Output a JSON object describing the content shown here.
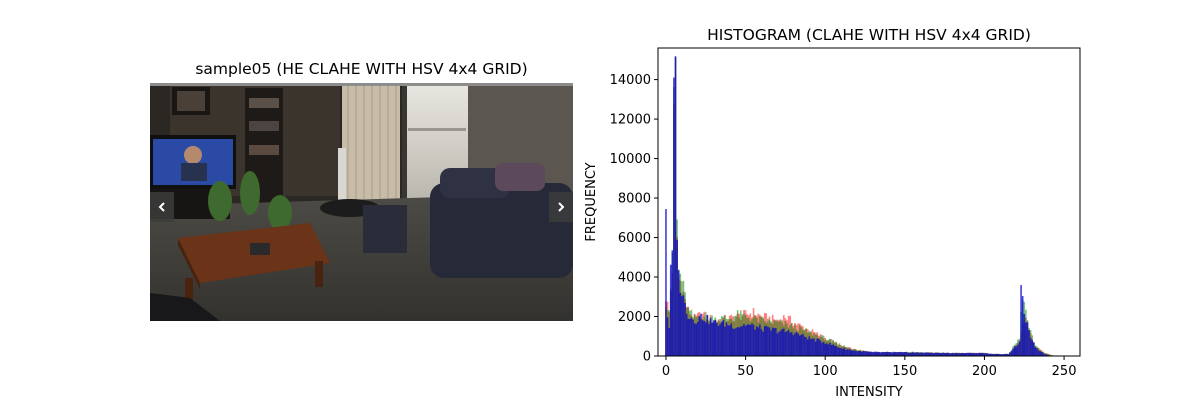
{
  "viewer": {
    "title": "sample05 (HE CLAHE WITH HSV 4x4 GRID)",
    "prev_icon": "chevron-left-icon",
    "next_icon": "chevron-right-icon"
  },
  "chart_data": {
    "type": "bar",
    "title": "HISTOGRAM (CLAHE WITH HSV 4x4 GRID)",
    "xlabel": "INTENSITY",
    "ylabel": "FREQUENCY",
    "xlim": [
      -5,
      260
    ],
    "ylim": [
      0,
      15600
    ],
    "xticks": [
      0,
      50,
      100,
      150,
      200,
      250
    ],
    "yticks": [
      0,
      2000,
      4000,
      6000,
      8000,
      10000,
      12000,
      14000
    ],
    "grid": false,
    "series": [
      {
        "color": "#ff0000",
        "alpha": 0.5,
        "anchors": [
          [
            0,
            3000
          ],
          [
            2,
            2200
          ],
          [
            4,
            4400
          ],
          [
            5,
            11800
          ],
          [
            6,
            14200
          ],
          [
            7,
            6000
          ],
          [
            8,
            4000
          ],
          [
            10,
            3600
          ],
          [
            12,
            2800
          ],
          [
            14,
            2300
          ],
          [
            18,
            1900
          ],
          [
            22,
            2100
          ],
          [
            30,
            1800
          ],
          [
            40,
            1900
          ],
          [
            45,
            2000
          ],
          [
            50,
            2100
          ],
          [
            55,
            2200
          ],
          [
            60,
            2000
          ],
          [
            70,
            1800
          ],
          [
            75,
            2000
          ],
          [
            80,
            1700
          ],
          [
            90,
            1300
          ],
          [
            100,
            900
          ],
          [
            110,
            500
          ],
          [
            120,
            300
          ],
          [
            130,
            200
          ],
          [
            150,
            200
          ],
          [
            180,
            150
          ],
          [
            200,
            150
          ],
          [
            205,
            100
          ],
          [
            215,
            100
          ],
          [
            222,
            700
          ],
          [
            224,
            1500
          ],
          [
            226,
            2000
          ],
          [
            228,
            1300
          ],
          [
            232,
            500
          ],
          [
            238,
            150
          ],
          [
            242,
            50
          ],
          [
            245,
            0
          ],
          [
            255,
            0
          ]
        ]
      },
      {
        "color": "#008000",
        "alpha": 0.5,
        "anchors": [
          [
            0,
            2800
          ],
          [
            2,
            2400
          ],
          [
            4,
            4700
          ],
          [
            5,
            13500
          ],
          [
            6,
            14900
          ],
          [
            7,
            6800
          ],
          [
            8,
            4300
          ],
          [
            10,
            3900
          ],
          [
            12,
            3000
          ],
          [
            14,
            2300
          ],
          [
            18,
            1900
          ],
          [
            22,
            2100
          ],
          [
            30,
            1900
          ],
          [
            40,
            1900
          ],
          [
            45,
            2100
          ],
          [
            50,
            2000
          ],
          [
            55,
            1900
          ],
          [
            60,
            1800
          ],
          [
            70,
            1700
          ],
          [
            75,
            1600
          ],
          [
            80,
            1500
          ],
          [
            90,
            1200
          ],
          [
            100,
            900
          ],
          [
            110,
            550
          ],
          [
            120,
            300
          ],
          [
            130,
            200
          ],
          [
            150,
            200
          ],
          [
            180,
            150
          ],
          [
            200,
            150
          ],
          [
            205,
            100
          ],
          [
            215,
            100
          ],
          [
            222,
            900
          ],
          [
            224,
            3200
          ],
          [
            226,
            2200
          ],
          [
            228,
            1400
          ],
          [
            232,
            500
          ],
          [
            238,
            150
          ],
          [
            242,
            50
          ],
          [
            245,
            0
          ],
          [
            255,
            0
          ]
        ]
      },
      {
        "color": "#0000cd",
        "alpha": 0.75,
        "anchors": [
          [
            0,
            7900
          ],
          [
            1,
            2000
          ],
          [
            2,
            1500
          ],
          [
            3,
            4200
          ],
          [
            4,
            5200
          ],
          [
            5,
            12800
          ],
          [
            6,
            14500
          ],
          [
            7,
            6500
          ],
          [
            8,
            4000
          ],
          [
            10,
            3200
          ],
          [
            12,
            2600
          ],
          [
            14,
            2100
          ],
          [
            18,
            1800
          ],
          [
            22,
            2000
          ],
          [
            30,
            1700
          ],
          [
            40,
            1600
          ],
          [
            45,
            1500
          ],
          [
            50,
            1600
          ],
          [
            55,
            1500
          ],
          [
            60,
            1400
          ],
          [
            70,
            1300
          ],
          [
            75,
            1250
          ],
          [
            80,
            1200
          ],
          [
            90,
            900
          ],
          [
            100,
            700
          ],
          [
            110,
            400
          ],
          [
            120,
            250
          ],
          [
            130,
            200
          ],
          [
            150,
            180
          ],
          [
            180,
            150
          ],
          [
            200,
            150
          ],
          [
            205,
            100
          ],
          [
            215,
            100
          ],
          [
            222,
            700
          ],
          [
            223,
            3200
          ],
          [
            226,
            1900
          ],
          [
            228,
            1200
          ],
          [
            232,
            400
          ],
          [
            238,
            100
          ],
          [
            242,
            0
          ],
          [
            255,
            0
          ]
        ]
      }
    ]
  }
}
